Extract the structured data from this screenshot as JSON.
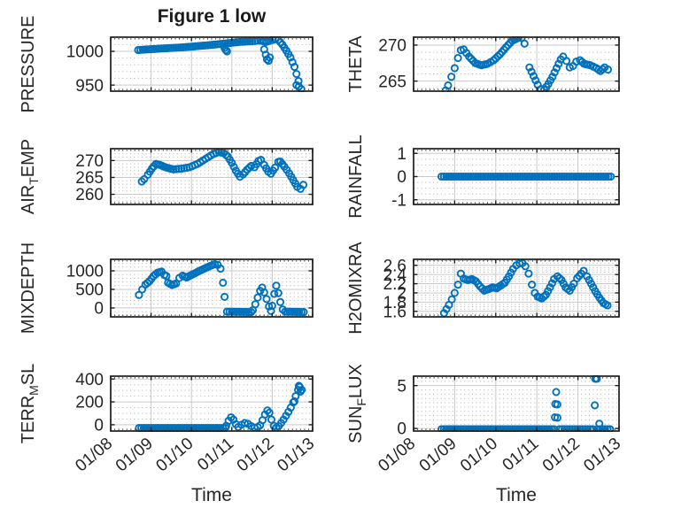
{
  "figure": {
    "title": "Figure 1 low",
    "xlabel": "Time"
  },
  "style": {
    "marker_color": "#0072BD",
    "text_color": "#262626",
    "axis_color": "#1c1c1c",
    "major_grid_color": "#c9c9c9",
    "minor_grid_color": "#b0b0b0",
    "background": "#ffffff"
  },
  "x_axis": {
    "label": "Time",
    "min": 8,
    "max": 13,
    "minor_step": 0.1,
    "ticks": [
      8,
      9,
      10,
      11,
      12,
      13
    ],
    "tick_labels": [
      "01/08",
      "01/09",
      "01/10",
      "01/11",
      "01/12",
      "01/13"
    ]
  },
  "chart_data": [
    {
      "type": "scatter",
      "ylabel": "PRESSURE",
      "ylabel_parts": [
        {
          "text": "PRESSURE",
          "sub": false
        }
      ],
      "row": 0,
      "col": 0,
      "ylim": [
        941,
        1021
      ],
      "yticks": [
        950,
        1000
      ],
      "ytick_labels": [
        "950",
        "1000"
      ],
      "yminor_step": 10,
      "series_segments": [
        [
          [
            8.68,
            1002
          ],
          [
            9.2,
            1004
          ],
          [
            9.8,
            1006
          ],
          [
            10.4,
            1009
          ],
          [
            10.9,
            1012
          ],
          [
            11.2,
            1014
          ],
          [
            11.5,
            1015
          ],
          [
            11.7,
            1016
          ],
          [
            11.85,
            1014
          ],
          [
            11.95,
            1016
          ],
          [
            12.08,
            1018
          ],
          [
            12.15,
            1017
          ],
          [
            12.25,
            1010
          ],
          [
            12.35,
            1001
          ],
          [
            12.45,
            991
          ],
          [
            12.55,
            977
          ],
          [
            12.65,
            956
          ],
          [
            12.72,
            944
          ]
        ]
      ],
      "outlier_points": [
        [
          10.82,
          1005
        ],
        [
          10.85,
          1002
        ],
        [
          10.88,
          1000
        ],
        [
          11.8,
          1003
        ],
        [
          11.84,
          995
        ],
        [
          11.87,
          988
        ],
        [
          11.91,
          986
        ],
        [
          11.94,
          991
        ],
        [
          12.6,
          950
        ],
        [
          12.66,
          948
        ]
      ]
    },
    {
      "type": "scatter",
      "ylabel": "THETA",
      "ylabel_parts": [
        {
          "text": "THETA",
          "sub": false
        }
      ],
      "row": 0,
      "col": 1,
      "ylim": [
        263.6,
        271.1
      ],
      "yticks": [
        265,
        270
      ],
      "ytick_labels": [
        "265",
        "270"
      ],
      "yminor_step": 1,
      "series_segments": [
        [
          [
            8.78,
            263.7
          ],
          [
            8.84,
            264.4
          ],
          [
            8.92,
            265.6
          ],
          [
            9.0,
            266.8
          ],
          [
            9.08,
            268.2
          ],
          [
            9.15,
            269.3
          ],
          [
            9.22,
            269.4
          ],
          [
            9.35,
            268.4
          ],
          [
            9.5,
            267.5
          ],
          [
            9.65,
            267.2
          ],
          [
            9.8,
            267.4
          ],
          [
            9.95,
            267.9
          ],
          [
            10.1,
            268.7
          ],
          [
            10.25,
            269.7
          ],
          [
            10.4,
            270.6
          ],
          [
            10.55,
            271.0
          ],
          [
            10.63,
            271.0
          ],
          [
            10.7,
            270.2
          ]
        ],
        [
          [
            10.82,
            266.9
          ],
          [
            10.92,
            265.7
          ],
          [
            11.02,
            264.5
          ],
          [
            11.1,
            263.9
          ],
          [
            11.18,
            263.8
          ],
          [
            11.28,
            264.6
          ],
          [
            11.38,
            265.6
          ],
          [
            11.48,
            266.8
          ],
          [
            11.58,
            268.0
          ],
          [
            11.64,
            268.4
          ],
          [
            11.72,
            267.8
          ],
          [
            11.8,
            266.9
          ],
          [
            11.88,
            267.1
          ],
          [
            11.96,
            267.7
          ],
          [
            12.05,
            267.9
          ],
          [
            12.15,
            267.4
          ],
          [
            12.3,
            267.2
          ],
          [
            12.45,
            266.8
          ],
          [
            12.55,
            266.4
          ],
          [
            12.65,
            266.9
          ],
          [
            12.73,
            266.6
          ]
        ]
      ],
      "outlier_points": []
    },
    {
      "type": "scatter",
      "ylabel": "AIR_TEMP",
      "ylabel_parts": [
        {
          "text": "AIR",
          "sub": false
        },
        {
          "text": "T",
          "sub": true
        },
        {
          "text": "EMP",
          "sub": false
        }
      ],
      "row": 1,
      "col": 0,
      "ylim": [
        257,
        273.5
      ],
      "yticks": [
        260,
        265,
        270
      ],
      "ytick_labels": [
        "260",
        "265",
        "270"
      ],
      "yminor_step": 1,
      "series_segments": [
        [
          [
            8.77,
            263.8
          ],
          [
            8.83,
            264.5
          ],
          [
            8.92,
            265.8
          ],
          [
            9.02,
            267.6
          ],
          [
            9.12,
            269.0
          ],
          [
            9.22,
            268.7
          ],
          [
            9.38,
            267.9
          ],
          [
            9.55,
            267.4
          ],
          [
            9.75,
            267.6
          ],
          [
            9.95,
            268.0
          ],
          [
            10.15,
            269.0
          ],
          [
            10.35,
            270.5
          ],
          [
            10.55,
            272.0
          ],
          [
            10.68,
            272.5
          ],
          [
            10.8,
            272.2
          ],
          [
            10.9,
            271.2
          ],
          [
            11.0,
            269.3
          ],
          [
            11.1,
            267.0
          ],
          [
            11.2,
            265.2
          ],
          [
            11.28,
            265.9
          ],
          [
            11.38,
            267.3
          ],
          [
            11.48,
            268.4
          ],
          [
            11.56,
            268.0
          ],
          [
            11.66,
            269.9
          ],
          [
            11.72,
            270.2
          ],
          [
            11.8,
            268.7
          ],
          [
            11.9,
            266.7
          ],
          [
            11.97,
            266.1
          ],
          [
            12.07,
            267.9
          ],
          [
            12.15,
            269.6
          ],
          [
            12.2,
            269.7
          ],
          [
            12.3,
            268.2
          ],
          [
            12.42,
            266.2
          ],
          [
            12.52,
            264.2
          ],
          [
            12.62,
            262.2
          ],
          [
            12.7,
            261.6
          ],
          [
            12.77,
            262.8
          ]
        ]
      ],
      "outlier_points": []
    },
    {
      "type": "scatter",
      "ylabel": "RAINFALL",
      "ylabel_parts": [
        {
          "text": "RAINFALL",
          "sub": false
        }
      ],
      "row": 1,
      "col": 1,
      "ylim": [
        -1.2,
        1.2
      ],
      "yticks": [
        -1,
        0,
        1
      ],
      "ytick_labels": [
        "-1",
        "0",
        "1"
      ],
      "yminor_step": 0.25,
      "series_segments": [
        [
          [
            8.68,
            0
          ],
          [
            12.8,
            0
          ]
        ]
      ],
      "outlier_points": []
    },
    {
      "type": "scatter",
      "ylabel": "MIXDEPTH",
      "ylabel_parts": [
        {
          "text": "MIXDEPTH",
          "sub": false
        }
      ],
      "row": 2,
      "col": 0,
      "ylim": [
        -240,
        1310
      ],
      "yticks": [
        0,
        500,
        1000
      ],
      "ytick_labels": [
        "0",
        "500",
        "1000"
      ],
      "yminor_step": 100,
      "series_segments": [
        [
          [
            8.7,
            350
          ],
          [
            8.78,
            500
          ],
          [
            8.86,
            630
          ],
          [
            8.96,
            720
          ],
          [
            9.06,
            860
          ],
          [
            9.16,
            950
          ],
          [
            9.26,
            980
          ],
          [
            9.33,
            890
          ],
          [
            9.42,
            680
          ],
          [
            9.52,
            620
          ],
          [
            9.62,
            660
          ],
          [
            9.7,
            810
          ],
          [
            9.78,
            870
          ],
          [
            9.88,
            820
          ],
          [
            9.98,
            880
          ],
          [
            10.08,
            930
          ],
          [
            10.18,
            990
          ],
          [
            10.28,
            1040
          ],
          [
            10.38,
            1090
          ],
          [
            10.48,
            1140
          ],
          [
            10.58,
            1180
          ],
          [
            10.65,
            1160
          ],
          [
            10.72,
            1060
          ]
        ],
        [
          [
            10.88,
            -100
          ],
          [
            11.48,
            -110
          ]
        ],
        [
          [
            11.52,
            -60
          ],
          [
            11.58,
            100
          ],
          [
            11.64,
            280
          ],
          [
            11.7,
            460
          ],
          [
            11.75,
            550
          ],
          [
            11.8,
            420
          ],
          [
            11.86,
            240
          ],
          [
            11.92,
            40
          ],
          [
            11.97,
            -80
          ]
        ],
        [
          [
            12.0,
            60
          ],
          [
            12.05,
            380
          ],
          [
            12.1,
            600
          ],
          [
            12.15,
            400
          ],
          [
            12.2,
            160
          ],
          [
            12.26,
            -40
          ],
          [
            12.32,
            -100
          ],
          [
            12.78,
            -110
          ]
        ]
      ],
      "outlier_points": [
        [
          9.38,
          860
        ],
        [
          10.78,
          680
        ],
        [
          10.82,
          300
        ]
      ]
    },
    {
      "type": "scatter",
      "ylabel": "H2OMIXRA",
      "ylabel_parts": [
        {
          "text": "H2OMIXRA",
          "sub": false
        }
      ],
      "row": 2,
      "col": 1,
      "ylim": [
        1.48,
        2.73
      ],
      "yticks": [
        1.6,
        1.8,
        2,
        2.2,
        2.4,
        2.6
      ],
      "ytick_labels": [
        "1.6",
        "1.8",
        "2",
        "2.2",
        "2.4",
        "2.6"
      ],
      "yminor_step": 0.05,
      "series_segments": [
        [
          [
            8.74,
            1.56
          ],
          [
            8.8,
            1.65
          ],
          [
            8.86,
            1.74
          ],
          [
            8.93,
            1.86
          ],
          [
            9.0,
            2.0
          ],
          [
            9.08,
            2.18
          ],
          [
            9.15,
            2.42
          ],
          [
            9.22,
            2.31
          ],
          [
            9.32,
            2.28
          ],
          [
            9.42,
            2.3
          ],
          [
            9.52,
            2.25
          ],
          [
            9.62,
            2.14
          ],
          [
            9.72,
            2.05
          ],
          [
            9.82,
            2.08
          ],
          [
            9.92,
            2.12
          ],
          [
            10.02,
            2.1
          ],
          [
            10.12,
            2.16
          ],
          [
            10.22,
            2.22
          ],
          [
            10.32,
            2.36
          ],
          [
            10.42,
            2.52
          ],
          [
            10.5,
            2.6
          ],
          [
            10.58,
            2.64
          ],
          [
            10.65,
            2.65
          ],
          [
            10.72,
            2.58
          ],
          [
            10.8,
            2.42
          ],
          [
            10.88,
            2.18
          ],
          [
            10.95,
            2.0
          ],
          [
            11.02,
            1.92
          ],
          [
            11.12,
            1.88
          ],
          [
            11.22,
            1.96
          ],
          [
            11.32,
            2.12
          ],
          [
            11.42,
            2.3
          ],
          [
            11.5,
            2.36
          ],
          [
            11.6,
            2.28
          ],
          [
            11.7,
            2.12
          ],
          [
            11.8,
            2.05
          ],
          [
            11.9,
            2.2
          ],
          [
            11.98,
            2.32
          ],
          [
            12.08,
            2.42
          ],
          [
            12.14,
            2.48
          ],
          [
            12.22,
            2.36
          ],
          [
            12.32,
            2.2
          ],
          [
            12.42,
            2.04
          ],
          [
            12.52,
            1.9
          ],
          [
            12.62,
            1.78
          ],
          [
            12.72,
            1.73
          ]
        ]
      ],
      "outlier_points": []
    },
    {
      "type": "scatter",
      "ylabel": "TERR_MSL",
      "ylabel_parts": [
        {
          "text": "TERR",
          "sub": false
        },
        {
          "text": "M",
          "sub": true
        },
        {
          "text": "SL",
          "sub": false
        }
      ],
      "row": 3,
      "col": 0,
      "ylim": [
        -55,
        425
      ],
      "yticks": [
        0,
        200,
        400
      ],
      "ytick_labels": [
        "0",
        "200",
        "400"
      ],
      "yminor_step": 50,
      "series_segments": [
        [
          [
            8.7,
            -28
          ],
          [
            10.84,
            -28
          ]
        ],
        [
          [
            10.86,
            -10
          ],
          [
            10.92,
            35
          ],
          [
            10.98,
            65
          ],
          [
            11.04,
            45
          ],
          [
            11.1,
            5
          ],
          [
            11.16,
            -20
          ],
          [
            11.24,
            0
          ],
          [
            11.32,
            15
          ],
          [
            11.4,
            8
          ],
          [
            11.48,
            -12
          ],
          [
            11.56,
            -25
          ],
          [
            11.64,
            -20
          ],
          [
            11.7,
            -5
          ],
          [
            11.76,
            40
          ],
          [
            11.82,
            90
          ],
          [
            11.88,
            125
          ],
          [
            11.93,
            105
          ],
          [
            11.98,
            45
          ],
          [
            12.04,
            -10
          ],
          [
            12.1,
            -25
          ],
          [
            12.16,
            -12
          ],
          [
            12.22,
            15
          ],
          [
            12.28,
            45
          ],
          [
            12.34,
            78
          ],
          [
            12.4,
            112
          ],
          [
            12.46,
            150
          ],
          [
            12.52,
            195
          ],
          [
            12.58,
            250
          ],
          [
            12.64,
            305
          ],
          [
            12.68,
            330
          ],
          [
            12.73,
            305
          ]
        ]
      ],
      "outlier_points": [
        [
          12.55,
          205
        ],
        [
          12.66,
          340
        ],
        [
          12.7,
          290
        ]
      ]
    },
    {
      "type": "scatter",
      "ylabel": "SUN_FLUX",
      "ylabel_parts": [
        {
          "text": "SUN",
          "sub": false
        },
        {
          "text": "F",
          "sub": true
        },
        {
          "text": "LUX",
          "sub": false
        }
      ],
      "row": 3,
      "col": 1,
      "ylim": [
        -0.3,
        6.1
      ],
      "yticks": [
        0,
        5
      ],
      "ytick_labels": [
        "0",
        "5"
      ],
      "yminor_step": 0.5,
      "series_segments": [
        [
          [
            8.68,
            -0.08
          ],
          [
            11.42,
            -0.08
          ]
        ],
        [
          [
            11.55,
            -0.08
          ],
          [
            12.36,
            -0.08
          ]
        ],
        [
          [
            12.48,
            -0.08
          ],
          [
            12.78,
            -0.08
          ]
        ]
      ],
      "outlier_points": [
        [
          11.47,
          4.25
        ],
        [
          11.45,
          2.85
        ],
        [
          11.5,
          2.8
        ],
        [
          11.44,
          1.3
        ],
        [
          11.5,
          1.25
        ],
        [
          12.42,
          5.8
        ],
        [
          12.46,
          5.8
        ],
        [
          12.41,
          2.7
        ],
        [
          12.52,
          0.55
        ]
      ]
    }
  ]
}
